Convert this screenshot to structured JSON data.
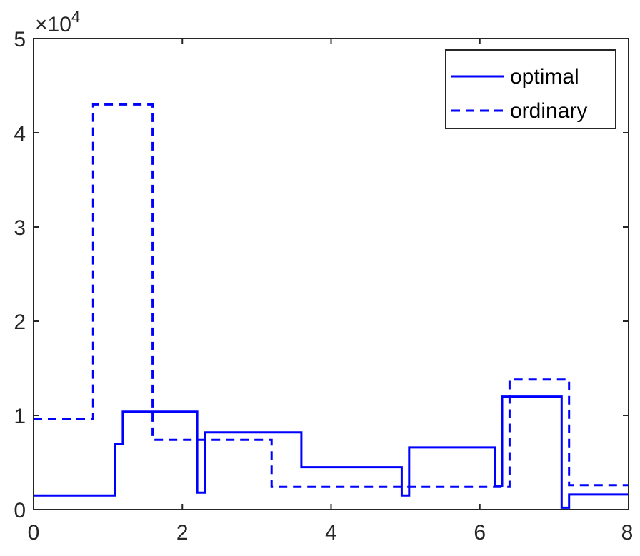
{
  "chart_data": {
    "type": "line",
    "step": true,
    "title": "",
    "xlabel": "",
    "ylabel": "",
    "xlim": [
      0,
      8
    ],
    "ylim": [
      0,
      50000
    ],
    "x_ticks": [
      "0",
      "2",
      "4",
      "6",
      "8"
    ],
    "y_ticks": [
      "0",
      "1",
      "2",
      "3",
      "4",
      "5"
    ],
    "y_exponent": {
      "base": "×10",
      "power": "4"
    },
    "grid": false,
    "legend_position": "top-right",
    "series": [
      {
        "name": "optimal",
        "color": "#0000ff",
        "style": "solid",
        "x": [
          0,
          1.1,
          1.1,
          1.2,
          1.2,
          2.2,
          2.2,
          2.3,
          2.3,
          3.6,
          3.6,
          4.95,
          4.95,
          5.05,
          5.05,
          6.2,
          6.2,
          6.3,
          6.3,
          7.1,
          7.1,
          7.2,
          7.2,
          8.0
        ],
        "y": [
          1500,
          1500,
          7000,
          7000,
          10400,
          10400,
          1800,
          1800,
          8200,
          8200,
          4500,
          4500,
          1500,
          1500,
          6600,
          6600,
          2500,
          2500,
          12000,
          12000,
          200,
          200,
          1600,
          1600
        ]
      },
      {
        "name": "ordinary",
        "color": "#0000ff",
        "style": "dashed",
        "x": [
          0,
          0.8,
          0.8,
          1.6,
          1.6,
          3.2,
          3.2,
          6.4,
          6.4,
          7.2,
          7.2,
          8.0
        ],
        "y": [
          9600,
          9600,
          43000,
          43000,
          7400,
          7400,
          2400,
          2400,
          13800,
          13800,
          2600,
          2600
        ]
      }
    ]
  }
}
